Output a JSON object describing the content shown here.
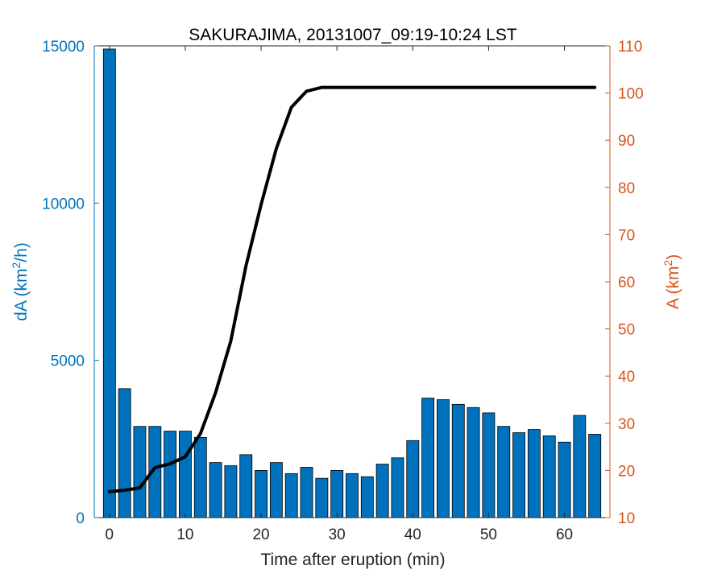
{
  "chart_data": {
    "type": "bar+line",
    "title": "SAKURAJIMA, 20131007_09:19-10:24 LST",
    "xlabel": "Time after eruption (min)",
    "ylabel_left": {
      "base": "dA (km",
      "sup": "2",
      "tail": "/h)"
    },
    "ylabel_right": {
      "base": "A (km",
      "sup": "2",
      "tail": ")"
    },
    "xlim": [
      -2,
      66
    ],
    "ylim_left": [
      0,
      15000
    ],
    "ylim_right": [
      10,
      110
    ],
    "x_ticks": [
      "0",
      "10",
      "20",
      "30",
      "40",
      "50",
      "60"
    ],
    "y_left_ticks": [
      "0",
      "5000",
      "10000",
      "15000"
    ],
    "y_right_ticks": [
      "10",
      "20",
      "30",
      "40",
      "50",
      "60",
      "70",
      "80",
      "90",
      "100",
      "110"
    ],
    "colors": {
      "left_axis": "#0072BD",
      "right_axis": "#D95319",
      "bars": "#0072BD",
      "line": "#000000"
    },
    "grid": false,
    "bars": {
      "x": [
        0,
        2,
        4,
        6,
        8,
        10,
        12,
        14,
        16,
        18,
        20,
        22,
        24,
        26,
        28,
        30,
        32,
        34,
        36,
        38,
        40,
        42,
        44,
        46,
        48,
        50,
        52,
        54,
        56,
        58,
        60,
        62,
        64
      ],
      "values": [
        14900,
        4100,
        2900,
        2900,
        2750,
        2750,
        2550,
        1750,
        1650,
        2000,
        1500,
        1750,
        1400,
        1600,
        1250,
        1500,
        1400,
        1300,
        1700,
        1900,
        2450,
        3800,
        3750,
        3600,
        3500,
        3330,
        2900,
        2700,
        2800,
        2600,
        2400,
        3250,
        2650
      ]
    },
    "line": {
      "x": [
        0,
        2,
        4,
        6,
        8,
        10,
        12,
        14,
        16,
        18,
        20,
        22,
        24,
        26,
        28,
        30,
        32,
        34,
        36,
        38,
        40,
        42,
        44,
        46,
        48,
        50,
        52,
        54,
        56,
        58,
        60,
        62,
        64
      ],
      "values": [
        15.5,
        15.8,
        16.3,
        20.6,
        21.4,
        22.9,
        27.8,
        36.5,
        47.4,
        63.3,
        76.4,
        88.2,
        97.0,
        100.4,
        101.2,
        101.2,
        101.2,
        101.2,
        101.2,
        101.2,
        101.2,
        101.2,
        101.2,
        101.2,
        101.2,
        101.2,
        101.2,
        101.2,
        101.2,
        101.2,
        101.2,
        101.2,
        101.2
      ]
    }
  }
}
